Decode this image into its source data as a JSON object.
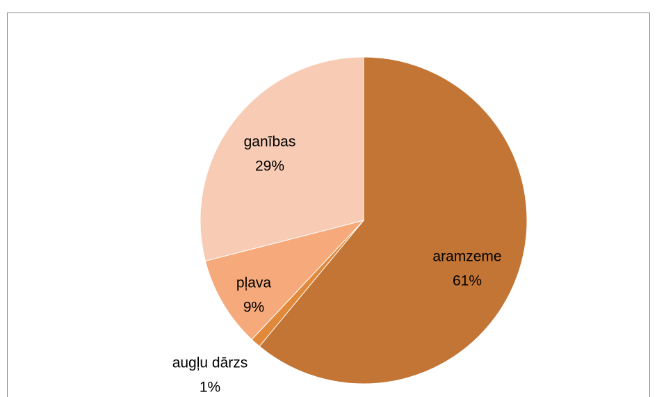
{
  "chart_data": {
    "type": "pie",
    "categories": [
      "aramzeme",
      "augļu dārzs",
      "pļava",
      "ganības"
    ],
    "values": [
      61,
      1,
      9,
      29
    ],
    "value_labels": [
      "61%",
      "1%",
      "9%",
      "29%"
    ],
    "colors": [
      "#c37535",
      "#e0893b",
      "#f6aa7b",
      "#f8cbb4"
    ]
  }
}
